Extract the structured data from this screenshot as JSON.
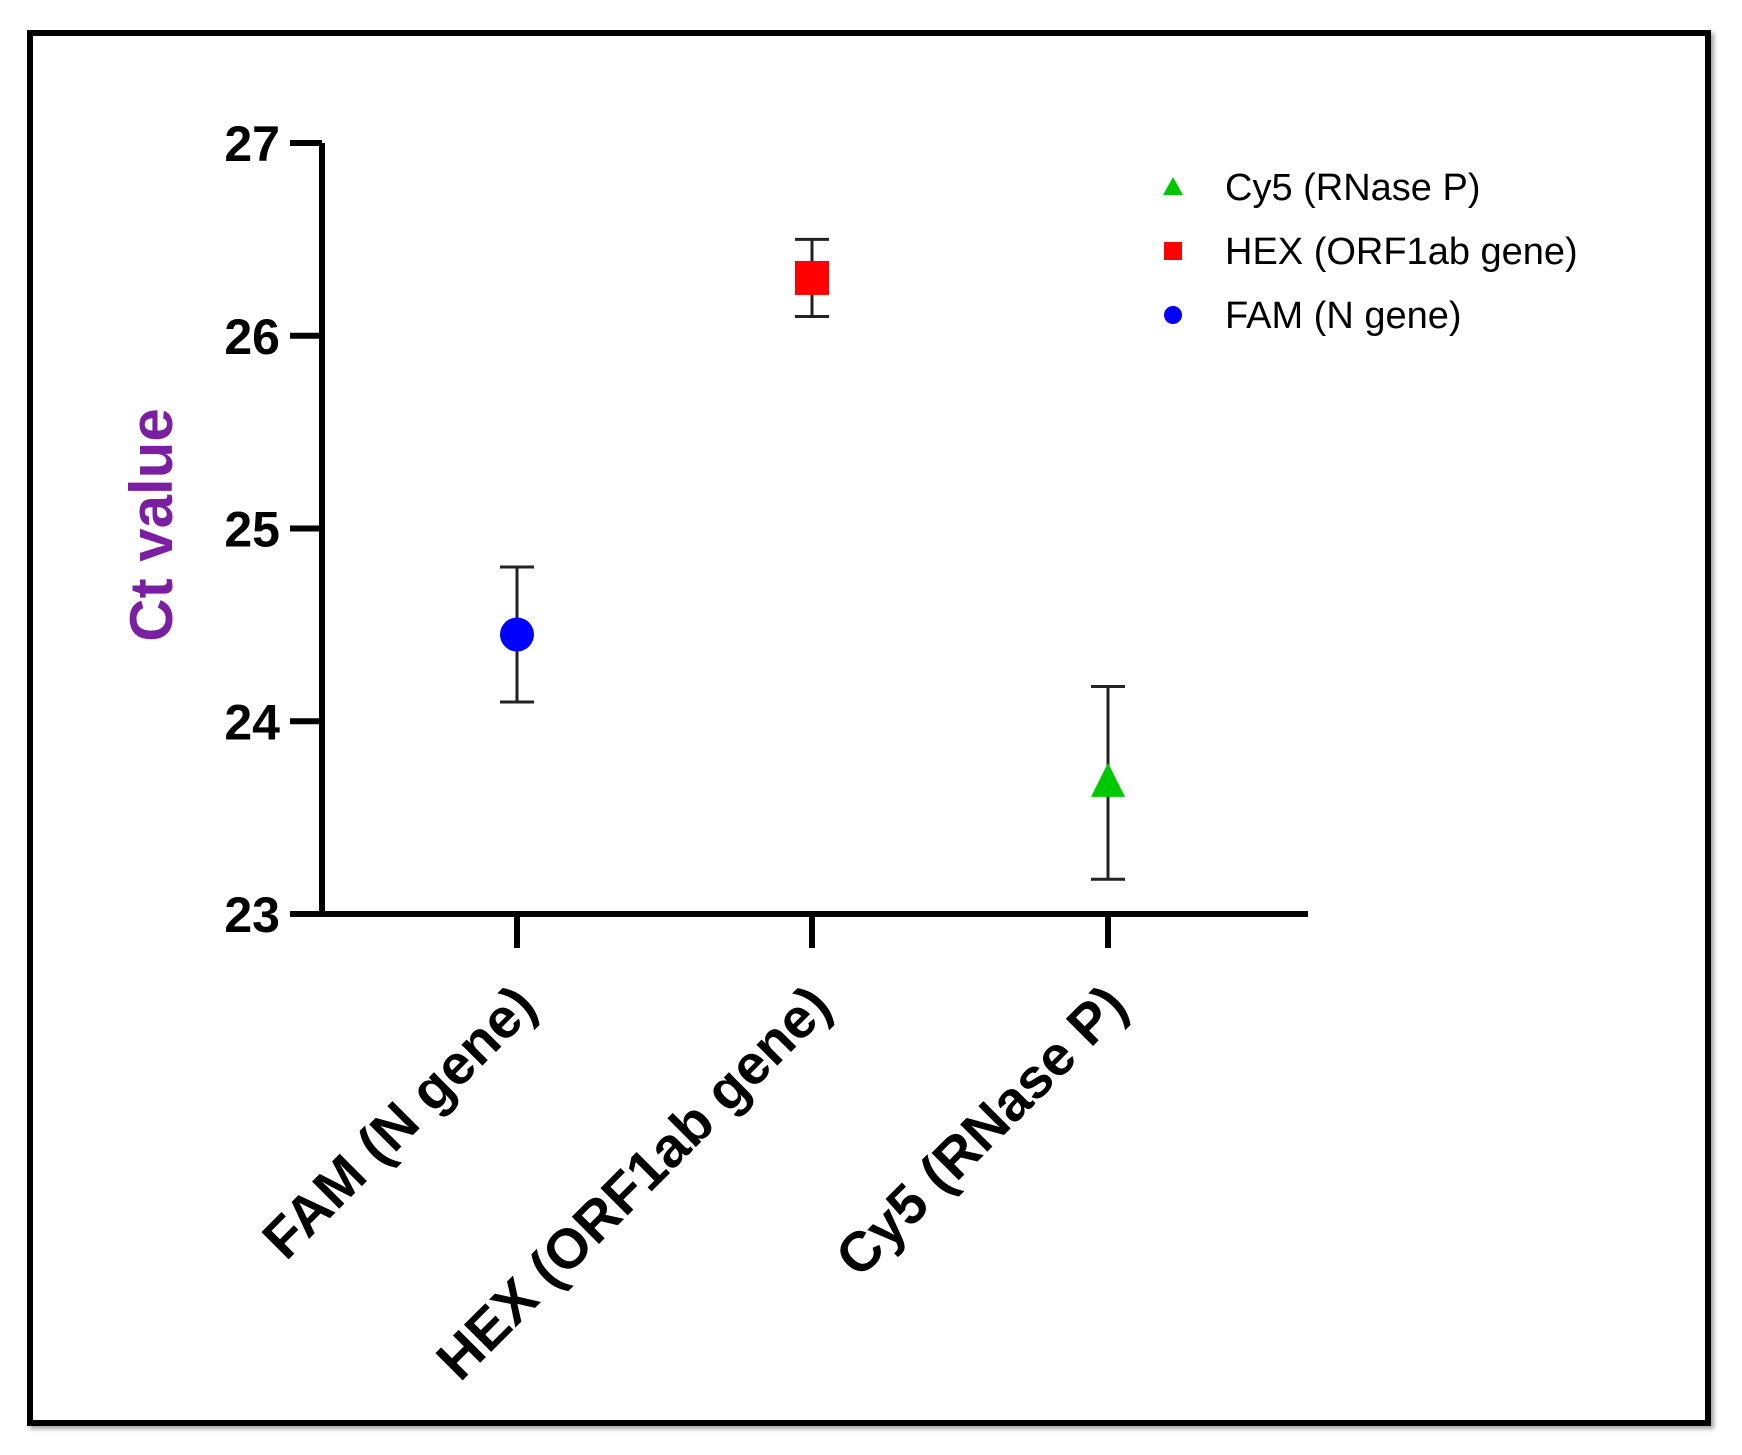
{
  "chart_data": {
    "type": "scatter",
    "title": "",
    "xlabel": "",
    "ylabel": "Ct value",
    "ylim": [
      23,
      27
    ],
    "yticks": [
      23,
      24,
      25,
      26,
      27
    ],
    "categories": [
      "FAM (N gene)",
      "HEX (ORF1ab gene)",
      "Cy5 (RNase P)"
    ],
    "series": [
      {
        "name": "FAM (N gene)",
        "category": "FAM (N gene)",
        "mean": 24.45,
        "err_low": 24.1,
        "err_high": 24.8,
        "marker": "circle",
        "color": "#0000ff"
      },
      {
        "name": "HEX (ORF1ab gene)",
        "category": "HEX (ORF1ab gene)",
        "mean": 26.3,
        "err_low": 26.1,
        "err_high": 26.5,
        "marker": "square",
        "color": "#ff0000"
      },
      {
        "name": "Cy5 (RNase P)",
        "category": "Cy5 (RNase P)",
        "mean": 23.68,
        "err_low": 23.18,
        "err_high": 24.18,
        "marker": "triangle",
        "color": "#00c800"
      }
    ],
    "legend": {
      "position": "top-right",
      "entries": [
        {
          "label": "Cy5 (RNase P)",
          "marker": "triangle",
          "color": "#00c800"
        },
        {
          "label": "HEX (ORF1ab gene)",
          "marker": "square",
          "color": "#ff0000"
        },
        {
          "label": "FAM (N gene)",
          "marker": "circle",
          "color": "#0000ff"
        }
      ]
    },
    "ylabel_color": "#7a1fa2"
  }
}
